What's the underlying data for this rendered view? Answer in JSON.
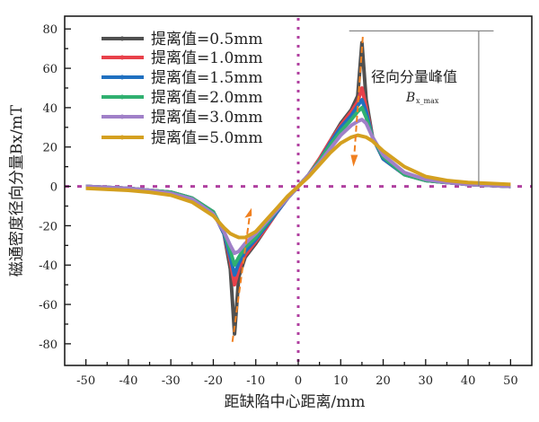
{
  "chart_data": {
    "type": "line",
    "xlabel": "距缺陷中心距离/mm",
    "ylabel": "磁通密度径向分量Bx/mT",
    "xlim": [
      -55,
      55
    ],
    "ylim": [
      -91,
      86.5
    ],
    "xticks": [
      -50,
      -40,
      -30,
      -20,
      -10,
      0,
      10,
      20,
      30,
      40,
      50
    ],
    "yticks": [
      -80,
      -60,
      -40,
      -20,
      0,
      20,
      40,
      60,
      80
    ],
    "grid": false,
    "legend_position": "top-left",
    "x": [
      -50,
      -45,
      -40,
      -35,
      -30,
      -25,
      -20,
      -17.5,
      -16,
      -15,
      -14,
      -12.5,
      -10,
      -7.5,
      -5,
      -2.5,
      0,
      2.5,
      5,
      7.5,
      10,
      12.5,
      14,
      15,
      16,
      17.5,
      20,
      25,
      30,
      35,
      40,
      45,
      50
    ],
    "series": [
      {
        "name": "提离值=0.5mm",
        "color": "#505050",
        "values": [
          0,
          -0.5,
          -1,
          -2,
          -3,
          -6,
          -13,
          -24,
          -42,
          -75,
          -46,
          -36,
          -29,
          -21,
          -13,
          -6,
          0,
          6,
          14,
          23,
          32,
          39,
          46,
          73,
          44,
          25,
          14,
          6,
          3,
          2,
          1,
          0.5,
          0
        ]
      },
      {
        "name": "提离值=1.0mm",
        "color": "#e8414a",
        "values": [
          0,
          -0.5,
          -1,
          -2,
          -3,
          -6,
          -13,
          -24,
          -38,
          -50,
          -42,
          -35,
          -28,
          -21,
          -13,
          -6,
          0,
          6,
          14,
          23,
          31,
          38,
          43,
          50,
          40,
          25,
          14,
          6,
          3,
          2,
          1,
          0.5,
          0
        ]
      },
      {
        "name": "提离值=1.5mm",
        "color": "#2070c0",
        "values": [
          0,
          -0.5,
          -1,
          -2,
          -3,
          -6,
          -13,
          -24,
          -36,
          -45,
          -39,
          -33,
          -27,
          -20,
          -13,
          -6,
          0,
          6,
          13,
          22,
          30,
          36,
          41,
          44,
          38,
          25,
          14,
          6,
          3,
          2,
          1,
          0.5,
          0
        ]
      },
      {
        "name": "提离值=2.0mm",
        "color": "#30b070",
        "values": [
          0,
          -0.5,
          -1,
          -2,
          -3,
          -6,
          -13,
          -23,
          -33,
          -40,
          -36,
          -31,
          -26,
          -19,
          -12,
          -6,
          0,
          6,
          13,
          21,
          28,
          34,
          38,
          40,
          35,
          25,
          15,
          6,
          3,
          2,
          1,
          0.5,
          0
        ]
      },
      {
        "name": "提离值=3.0mm",
        "color": "#a080c8",
        "values": [
          0,
          -0.5,
          -1,
          -2,
          -3.5,
          -6.5,
          -14,
          -23,
          -30,
          -34,
          -33,
          -29,
          -24,
          -18,
          -12,
          -6,
          0,
          6,
          12,
          19,
          26,
          31,
          33,
          34,
          32,
          25,
          16,
          7,
          3.5,
          2,
          1,
          0.5,
          0
        ]
      },
      {
        "name": "提离值=5.0mm",
        "color": "#d4a020",
        "values": [
          -1,
          -1.5,
          -2,
          -3,
          -4.5,
          -8,
          -15,
          -21,
          -24,
          -25,
          -26,
          -26,
          -23,
          -17,
          -11,
          -5,
          0,
          5,
          11,
          17,
          22,
          25,
          26,
          25.5,
          25,
          23,
          18,
          10,
          5,
          3,
          2,
          1.5,
          1
        ]
      }
    ],
    "reference_lines": {
      "x": 0,
      "y": 0,
      "color": "#b040a0"
    },
    "annotations": {
      "peak_label": "径向分量峰值",
      "peak_symbol": "B",
      "peak_symbol_sub": "x_max",
      "bracket_color": "#808080",
      "arrow_color": "#f08020"
    }
  }
}
